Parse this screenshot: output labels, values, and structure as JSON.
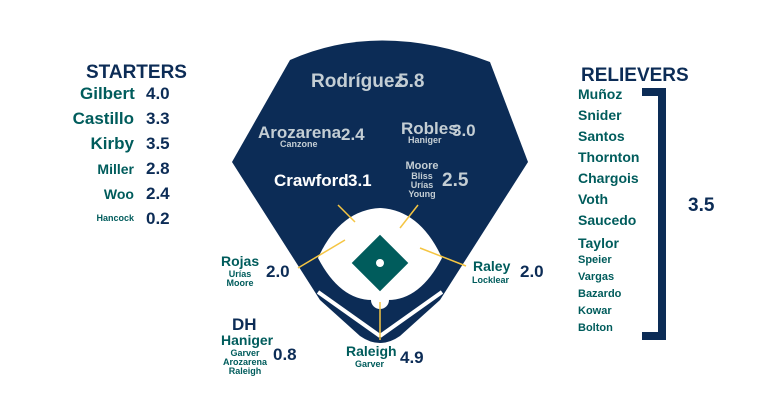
{
  "colors": {
    "navy": "#0c2c56",
    "teal": "#005c5c",
    "silver": "#c4ced4",
    "gold": "#f5c542"
  },
  "starters": {
    "title": "STARTERS",
    "rows": [
      {
        "name": "Gilbert",
        "value": "4.0"
      },
      {
        "name": "Castillo",
        "value": "3.3"
      },
      {
        "name": "Kirby",
        "value": "3.5"
      },
      {
        "name": "Miller",
        "value": "2.8"
      },
      {
        "name": "Woo",
        "value": "2.4"
      },
      {
        "name": "Hancock",
        "value": "0.2"
      }
    ]
  },
  "relievers": {
    "title": "RELIEVERS",
    "names": [
      "Muñoz",
      "Snider",
      "Santos",
      "Thornton",
      "Chargois",
      "Voth",
      "Saucedo",
      "Taylor",
      "Speier",
      "Vargas",
      "Bazardo",
      "Kowar",
      "Bolton"
    ],
    "total": "3.5"
  },
  "field": {
    "cf": {
      "name": "Rodríguez",
      "value": "5.8"
    },
    "lf": {
      "name": "Arozarena",
      "backup": "Canzone",
      "value": "2.4"
    },
    "rf": {
      "name": "Robles",
      "backup": "Haniger",
      "value": "3.0"
    },
    "ss": {
      "name": "Crawford",
      "value": "3.1"
    },
    "2b": {
      "names": [
        "Moore",
        "Bliss",
        "Urías",
        "Young"
      ],
      "value": "2.5"
    },
    "3b": {
      "name": "Rojas",
      "backups": [
        "Urías",
        "Moore"
      ],
      "value": "2.0"
    },
    "1b": {
      "name": "Raley",
      "backup": "Locklear",
      "value": "2.0"
    },
    "c": {
      "name": "Raleigh",
      "backup": "Garver",
      "value": "4.9"
    },
    "dh": {
      "title": "DH",
      "name": "Haniger",
      "backups": [
        "Garver",
        "Arozarena",
        "Raleigh"
      ],
      "value": "0.8"
    }
  }
}
